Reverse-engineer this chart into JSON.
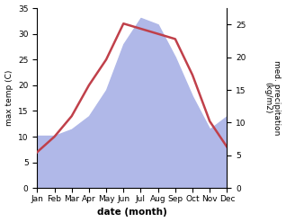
{
  "months": [
    "Jan",
    "Feb",
    "Mar",
    "Apr",
    "May",
    "Jun",
    "Jul",
    "Aug",
    "Sep",
    "Oct",
    "Nov",
    "Dec"
  ],
  "temp": [
    7,
    10,
    14,
    20,
    25,
    32,
    31,
    30,
    29,
    22,
    13,
    8
  ],
  "precip": [
    8,
    8,
    9,
    11,
    15,
    22,
    26,
    25,
    20,
    14,
    9,
    11
  ],
  "temp_color": "#c0404a",
  "precip_color": "#b0b8e8",
  "left_ylabel": "max temp (C)",
  "right_ylabel": "med. precipitation\n(kg/m2)",
  "xlabel": "date (month)",
  "temp_ylim": [
    0,
    35
  ],
  "temp_yticks": [
    0,
    5,
    10,
    15,
    20,
    25,
    30,
    35
  ],
  "precip_ylim": [
    0,
    27.5
  ],
  "precip_yticks": [
    0,
    5,
    10,
    15,
    20,
    25
  ],
  "bg_color": "#ffffff"
}
